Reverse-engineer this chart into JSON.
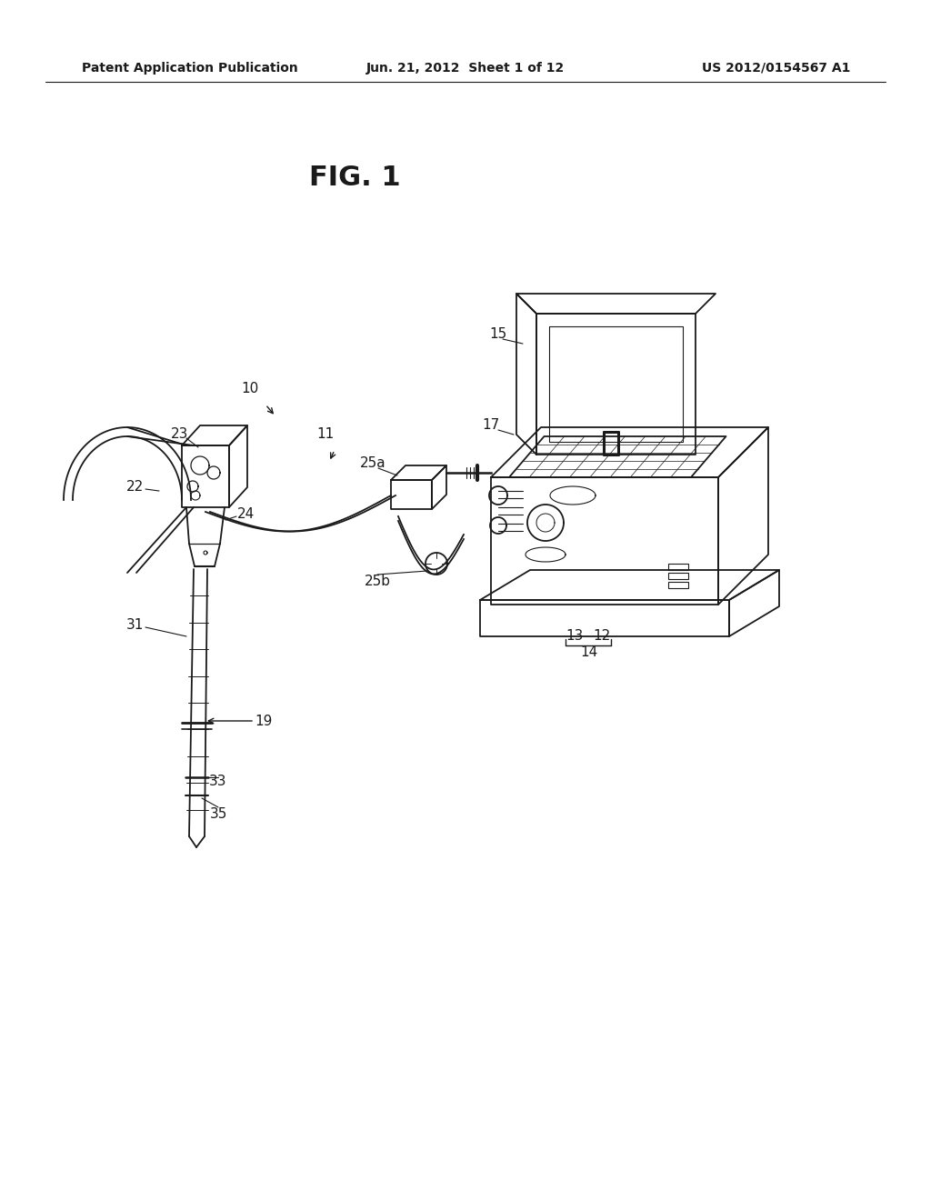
{
  "bg_color": "#ffffff",
  "line_color": "#1a1a1a",
  "header_left": "Patent Application Publication",
  "header_center": "Jun. 21, 2012  Sheet 1 of 12",
  "header_right": "US 2012/0154567 A1",
  "fig_label": "FIG. 1"
}
